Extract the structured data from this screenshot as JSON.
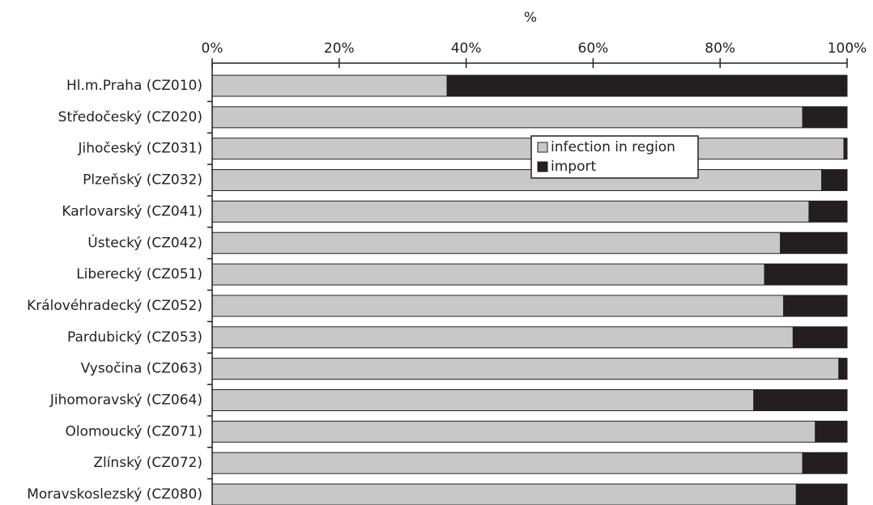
{
  "chart_data": {
    "type": "stacked_barh",
    "x_label": "%",
    "categories": [
      "Hl.m.Praha (CZ010)",
      "Středočeský (CZ020)",
      "Jihočeský (CZ031)",
      "Plzeňský (CZ032)",
      "Karlovarský (CZ041)",
      "Ústecký (CZ042)",
      "Liberecký (CZ051)",
      "Královéhradecký (CZ052)",
      "Pardubický (CZ053)",
      "Vysočina (CZ063)",
      "Jihomoravský (CZ064)",
      "Olomoucký (CZ071)",
      "Zlínský (CZ072)",
      "Moravskoslezský (CZ080)"
    ],
    "series": [
      {
        "name": "infection in region",
        "color": "#c8c8c8",
        "values": [
          37,
          93,
          99.5,
          96,
          94,
          89.5,
          87,
          90,
          91.5,
          98.7,
          85.3,
          95,
          93,
          92
        ]
      },
      {
        "name": "import",
        "color": "#231f20",
        "values": [
          63,
          7,
          0.5,
          4,
          6,
          10.5,
          13,
          10,
          8.5,
          1.3,
          14.7,
          5,
          7,
          8
        ]
      }
    ],
    "xlim": [
      0,
      100
    ],
    "xticks": [
      {
        "value": 0,
        "label": "0%"
      },
      {
        "value": 20,
        "label": "20%"
      },
      {
        "value": 40,
        "label": "40%"
      },
      {
        "value": 60,
        "label": "60%"
      },
      {
        "value": 80,
        "label": "80%"
      },
      {
        "value": 100,
        "label": "100%"
      }
    ],
    "legend": "upper center"
  }
}
